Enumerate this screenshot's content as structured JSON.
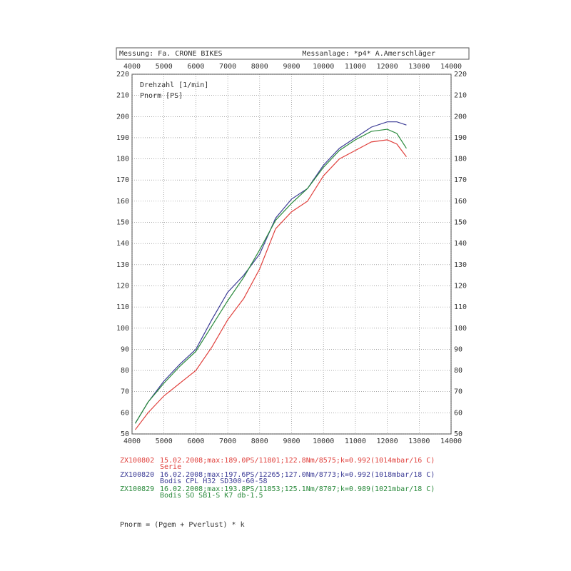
{
  "header": {
    "left": "Messung: Fa. CRONE BIKES",
    "right": "Messanlage: *p4* A.Amerschläger"
  },
  "chart_data": {
    "type": "line",
    "x_axis_label": "Drehzahl [1/min]",
    "y_axis_label": "Pnorm [PS]",
    "x": [
      4100,
      4500,
      5000,
      5500,
      6000,
      6500,
      7000,
      7500,
      8000,
      8500,
      9000,
      9500,
      10000,
      10500,
      11000,
      11500,
      12000,
      12300,
      12600
    ],
    "series": [
      {
        "name": "ZX100802",
        "details": "15.02.2008;max:189.0PS/11801;122.8Nm/8575;k=0.992(1014mbar/16 C)",
        "note": "Serie",
        "color": "#e0403c",
        "values": [
          52,
          60,
          68,
          74,
          80,
          91,
          104,
          114,
          128,
          147,
          155,
          160,
          172,
          180,
          184,
          188,
          189,
          187,
          181
        ]
      },
      {
        "name": "ZX100820",
        "details": "16.02.2008;max:197.6PS/12265;127.0Nm/8773;k=0.992(1018mbar/18 C)",
        "note": "Bodis CPL H32 SD300-60-58",
        "color": "#3c3c96",
        "values": [
          55,
          65,
          75,
          83,
          90,
          104,
          117,
          125,
          135,
          152,
          161,
          166,
          177,
          185,
          190,
          195,
          197.5,
          197.5,
          196
        ]
      },
      {
        "name": "ZX100829",
        "details": "16.02.2008;max:193.8PS/11853;125.1Nm/8707;k=0.989(1021mbar/18 C)",
        "note": "Bodis SO SB1-S K7 db-1.5",
        "color": "#2a8a3c",
        "values": [
          55,
          65,
          74,
          82,
          89,
          101,
          113,
          124,
          137,
          151,
          159,
          166,
          176,
          184,
          189,
          193,
          194,
          192,
          185
        ]
      }
    ],
    "xlim": [
      4000,
      14000
    ],
    "xticks": [
      4000,
      5000,
      6000,
      7000,
      8000,
      9000,
      10000,
      11000,
      12000,
      13000,
      14000
    ],
    "ylim": [
      50,
      220
    ],
    "yticks": [
      50,
      60,
      70,
      80,
      90,
      100,
      110,
      120,
      130,
      140,
      150,
      160,
      170,
      180,
      190,
      200,
      210,
      220
    ],
    "grid": true
  },
  "footer": "Pnorm = (Pgem + Pverlust) * k"
}
